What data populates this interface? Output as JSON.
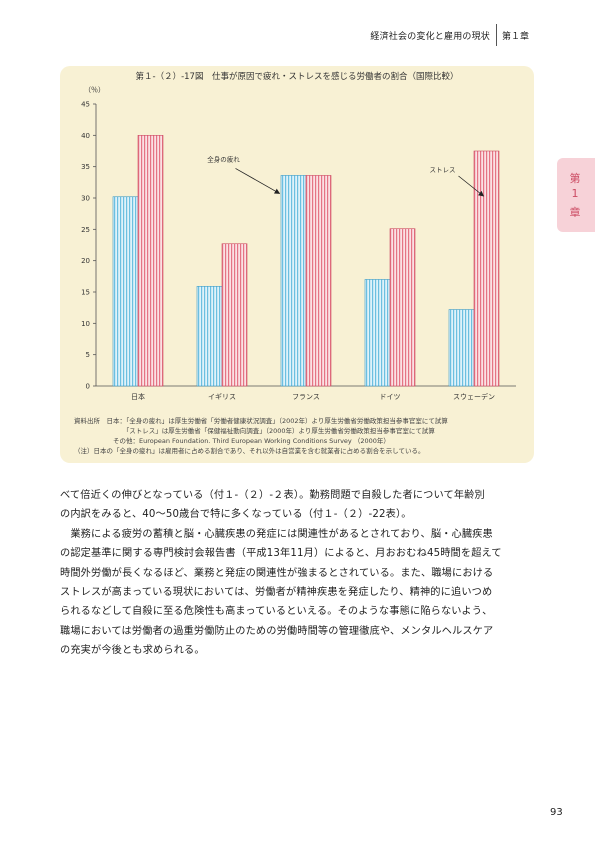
{
  "header": {
    "section_title": "経済社会の変化と雇用の現状",
    "chapter": "第１章"
  },
  "side_tab": {
    "chars": [
      "第",
      "1",
      "章"
    ]
  },
  "figure": {
    "title": "第１-（２）-17図　仕事が原因で疲れ・ストレスを感じる労働者の割合（国際比較）",
    "notes": [
      "資料出所　日本：「全身の疲れ」は厚生労働省「労働者健康状況調査」（2002年）より厚生労働省労働政策担当参事官室にて試算",
      "　　　　　　　　「ストレス」は厚生労働省「保健福祉動向調査」（2000年）より厚生労働省労働政策担当参事官室にて試算",
      "　　　　　　その他：European Foundation. Third European Working Conditions Survey （2000年）",
      "（注）日本の「全身の疲れ」は雇用者に占める割合であり、それ以外は自営業を含む就業者に占める割合を示している。"
    ]
  },
  "chart_data": {
    "type": "bar",
    "title": "",
    "ylabel": "（％）",
    "xlabel": "",
    "ylim": [
      0,
      45
    ],
    "yticks": [
      0,
      5,
      10,
      15,
      20,
      25,
      30,
      35,
      40,
      45
    ],
    "categories": [
      "日本",
      "イギリス",
      "フランス",
      "ドイツ",
      "スウェーデン"
    ],
    "series": [
      {
        "name": "全身の疲れ",
        "values": [
          30.2,
          15.9,
          33.6,
          17.0,
          12.2
        ],
        "color": "#8fcde6"
      },
      {
        "name": "ストレス",
        "values": [
          40.0,
          22.7,
          33.6,
          25.1,
          37.5
        ],
        "color": "#ee8a98"
      }
    ],
    "annotations": [
      {
        "text": "全身の疲れ",
        "series": 0
      },
      {
        "text": "ストレス",
        "series": 1
      }
    ],
    "grid": false
  },
  "body": {
    "lines": [
      "べて倍近くの伸びとなっている（付１-（２）-２表）。勤務問題で自殺した者について年齢別",
      "の内訳をみると、40～50歳台で特に多くなっている（付１-（２）-22表）。",
      "　業務による疲労の蓄積と脳・心臓疾患の発症には関連性があるとされており、脳・心臓疾患",
      "の認定基準に関する専門検討会報告書（平成13年11月）によると、月おおむね45時間を超えて",
      "時間外労働が長くなるほど、業務と発症の関連性が強まるとされている。また、職場における",
      "ストレスが高まっている現状においては、労働者が精神疾患を発症したり、精神的に追いつめ",
      "られるなどして自殺に至る危険性も高まっているといえる。そのような事態に陥らないよう、",
      "職場においては労働者の過重労働防止のための労働時間等の管理徹底や、メンタルヘルスケア",
      "の充実が今後とも求められる。"
    ]
  },
  "page_number": "93"
}
